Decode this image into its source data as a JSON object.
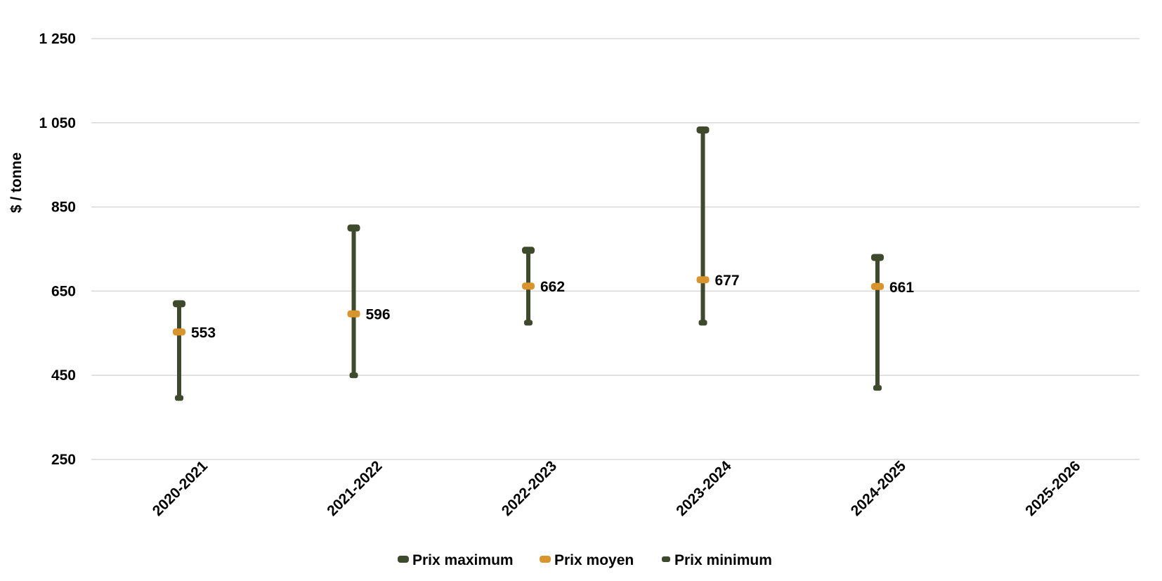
{
  "chart_data": {
    "type": "scatter",
    "title": "",
    "xlabel": "",
    "ylabel": "$ / tonne",
    "ylim": [
      250,
      1250
    ],
    "yticks": [
      250,
      450,
      650,
      850,
      1050,
      1250
    ],
    "ytick_labels": [
      "250",
      "450",
      "650",
      "850",
      "1 050",
      "1 250"
    ],
    "categories": [
      "2020-2021",
      "2021-2022",
      "2022-2023",
      "2023-2024",
      "2024-2025",
      "2025-2026"
    ],
    "series": [
      {
        "name": "Prix maximum",
        "values": [
          620,
          800,
          747,
          1033,
          730,
          null
        ]
      },
      {
        "name": "Prix moyen",
        "values": [
          553,
          596,
          662,
          677,
          661,
          null
        ]
      },
      {
        "name": "Prix minimum",
        "values": [
          396,
          450,
          575,
          575,
          420,
          null
        ]
      }
    ],
    "data_labels": [
      "553",
      "596",
      "662",
      "677",
      "661",
      ""
    ],
    "grid": true,
    "legend_position": "bottom",
    "colors": {
      "max": "#3f4a2c",
      "avg": "#d9952b",
      "min": "#3f4a2c",
      "gridline": "#d9d9d9"
    }
  }
}
